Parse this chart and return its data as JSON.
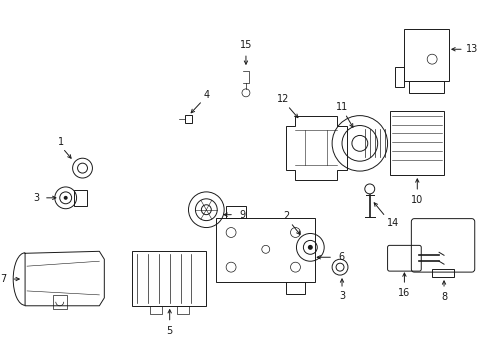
{
  "bg_color": "#ffffff",
  "figsize": [
    4.89,
    3.6
  ],
  "dpi": 100,
  "line_color": "#1a1a1a",
  "lw": 0.7
}
